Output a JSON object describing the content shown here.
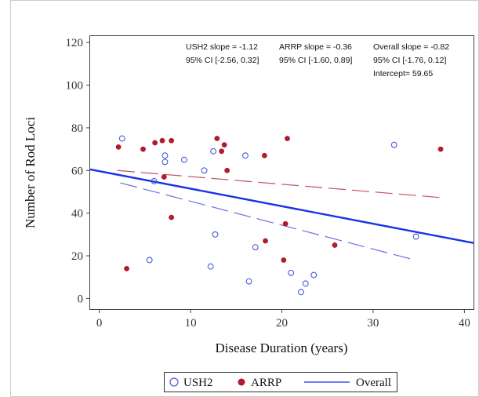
{
  "chart_data": {
    "type": "scatter",
    "xlabel": "Disease Duration (years)",
    "ylabel": "Number of Rod Loci",
    "xlim": [
      -1,
      41
    ],
    "ylim": [
      -5,
      123
    ],
    "x_ticks": [
      0,
      10,
      20,
      30,
      40
    ],
    "y_ticks": [
      0,
      20,
      40,
      60,
      80,
      100,
      120
    ],
    "grid": false,
    "legend_position": "bottom",
    "series": [
      {
        "name": "USH2",
        "marker": "open-circle",
        "color": "#4a5ad8",
        "points": [
          [
            2.5,
            75
          ],
          [
            5.5,
            18
          ],
          [
            6.0,
            55
          ],
          [
            7.2,
            64
          ],
          [
            7.2,
            67
          ],
          [
            9.3,
            65
          ],
          [
            11.5,
            60
          ],
          [
            12.2,
            15
          ],
          [
            12.5,
            69
          ],
          [
            12.7,
            30
          ],
          [
            16.0,
            67
          ],
          [
            16.4,
            8
          ],
          [
            17.1,
            24
          ],
          [
            21.0,
            12
          ],
          [
            22.1,
            3
          ],
          [
            22.6,
            7
          ],
          [
            23.5,
            11
          ],
          [
            32.3,
            72
          ],
          [
            34.7,
            29
          ]
        ]
      },
      {
        "name": "ARRP",
        "marker": "filled-circle",
        "color": "#b01c2e",
        "points": [
          [
            2.1,
            71
          ],
          [
            3.0,
            14
          ],
          [
            4.8,
            70
          ],
          [
            6.1,
            73
          ],
          [
            6.9,
            74
          ],
          [
            7.1,
            57
          ],
          [
            7.9,
            74
          ],
          [
            7.9,
            38
          ],
          [
            12.9,
            75
          ],
          [
            13.4,
            69
          ],
          [
            13.7,
            72
          ],
          [
            14.0,
            60
          ],
          [
            18.1,
            67
          ],
          [
            18.2,
            27
          ],
          [
            20.2,
            18
          ],
          [
            20.4,
            35
          ],
          [
            20.6,
            75
          ],
          [
            25.8,
            25
          ],
          [
            37.4,
            70
          ]
        ]
      }
    ],
    "fit_lines": [
      {
        "name": "USH2",
        "style": "long-dash",
        "color": "#6a72e6",
        "x": [
          2.3,
          34.7
        ],
        "y": [
          54.2,
          17.9
        ]
      },
      {
        "name": "ARRP",
        "style": "long-dash",
        "color": "#c0505a",
        "x": [
          2.0,
          37.4
        ],
        "y": [
          60.0,
          47.3
        ]
      },
      {
        "name": "Overall",
        "style": "solid",
        "color": "#1a32e6",
        "x": [
          -1,
          41
        ],
        "y": [
          60.5,
          26.0
        ]
      }
    ],
    "annotations": [
      {
        "lines": [
          "USH2 slope = -1.12",
          "95% CI [-2.56, 0.32]"
        ]
      },
      {
        "lines": [
          "ARRP slope = -0.36",
          "95% CI [-1.60, 0.89]"
        ]
      },
      {
        "lines": [
          "Overall slope = -0.82",
          "95% CI [-1.76, 0.12]",
          "Intercept= 59.65"
        ]
      }
    ],
    "legend": [
      {
        "label": "USH2",
        "symbol": "open-circle"
      },
      {
        "label": "ARRP",
        "symbol": "filled-circle"
      },
      {
        "label": "Overall",
        "symbol": "line"
      }
    ]
  }
}
